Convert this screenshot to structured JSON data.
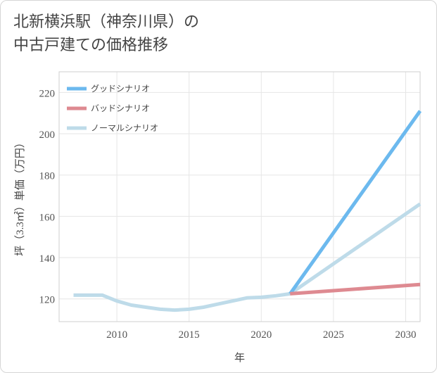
{
  "title_lines": [
    "北新横浜駅（神奈川県）の",
    "中古戸建ての価格推移"
  ],
  "chart_data": {
    "type": "line",
    "title": "北新横浜駅（神奈川県）の中古戸建ての価格推移",
    "xlabel": "年",
    "ylabel": "坪（3.3㎡）単価（万円）",
    "xlim": [
      2006,
      2031
    ],
    "ylim": [
      109,
      230
    ],
    "xticks": [
      2010,
      2015,
      2020,
      2025,
      2030
    ],
    "yticks": [
      120,
      140,
      160,
      180,
      200,
      220
    ],
    "grid": true,
    "legend_position": "top-left",
    "series": [
      {
        "name": "グッドシナリオ",
        "color": "#6cb9ee",
        "x": [
          2022,
          2031
        ],
        "y": [
          122.5,
          211
        ]
      },
      {
        "name": "バッドシナリオ",
        "color": "#de8a91",
        "x": [
          2022,
          2031
        ],
        "y": [
          122.5,
          127
        ]
      },
      {
        "name": "ノーマルシナリオ",
        "color": "#bedbe9",
        "x": [
          2007,
          2009,
          2010,
          2011,
          2012,
          2013,
          2014,
          2015,
          2016,
          2017,
          2018,
          2019,
          2020,
          2021,
          2022,
          2031
        ],
        "y": [
          121.8,
          121.8,
          119,
          117,
          116,
          115,
          114.6,
          115,
          116,
          117.5,
          119,
          120.5,
          120.8,
          121.5,
          122.5,
          166
        ]
      }
    ]
  }
}
